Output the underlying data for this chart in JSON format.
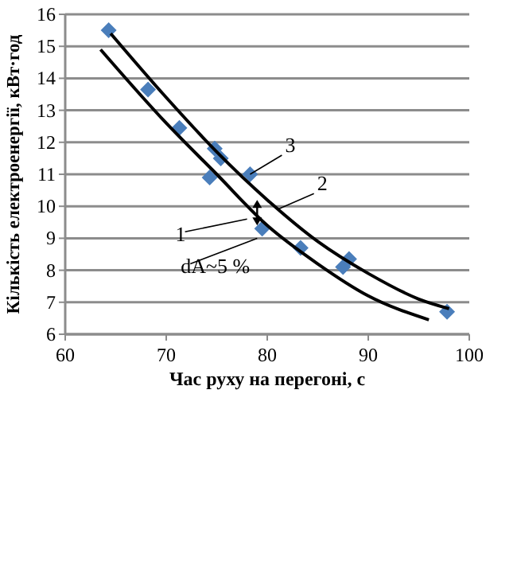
{
  "chart_data": {
    "type": "scatter",
    "xlabel": "Час руху на перегоні, с",
    "ylabel": "Кількість електроенергії, кВт·год",
    "xlim": [
      60,
      100
    ],
    "xticks": [
      60,
      70,
      80,
      90,
      100
    ],
    "ylim": [
      6,
      16
    ],
    "yticks": [
      6,
      7,
      8,
      9,
      10,
      11,
      12,
      13,
      14,
      15,
      16
    ],
    "grid": "y",
    "series": [
      {
        "marker": "diamond",
        "color": "#4a7ebb",
        "x": [
          64.3,
          68.2,
          71.3,
          74.8,
          75.4,
          74.3,
          78.3,
          79.5,
          83.3,
          88.1,
          87.5,
          97.8
        ],
        "values": [
          15.5,
          13.65,
          12.45,
          11.8,
          11.5,
          10.9,
          11.0,
          9.3,
          8.7,
          8.35,
          8.1,
          6.7
        ]
      },
      {
        "type": "line",
        "color": "#000000",
        "x": [
          64.5,
          70,
          75,
          80,
          85,
          90,
          95,
          98
        ],
        "values": [
          15.4,
          13.4,
          11.7,
          10.2,
          8.9,
          7.9,
          7.1,
          6.8
        ]
      },
      {
        "type": "line",
        "color": "#000000",
        "x": [
          63.5,
          70,
          75,
          80,
          85,
          90,
          96
        ],
        "values": [
          14.9,
          12.6,
          11.0,
          9.4,
          8.2,
          7.2,
          6.45
        ]
      }
    ],
    "annotations": [
      {
        "text": "3",
        "x": 78.3,
        "y": 11.0
      },
      {
        "text": "2",
        "x": 81,
        "y": 9.9
      },
      {
        "text": "1",
        "x": 78,
        "y": 9.6
      },
      {
        "text": "dA~5 %",
        "x": 79,
        "y": 9.0
      }
    ]
  }
}
